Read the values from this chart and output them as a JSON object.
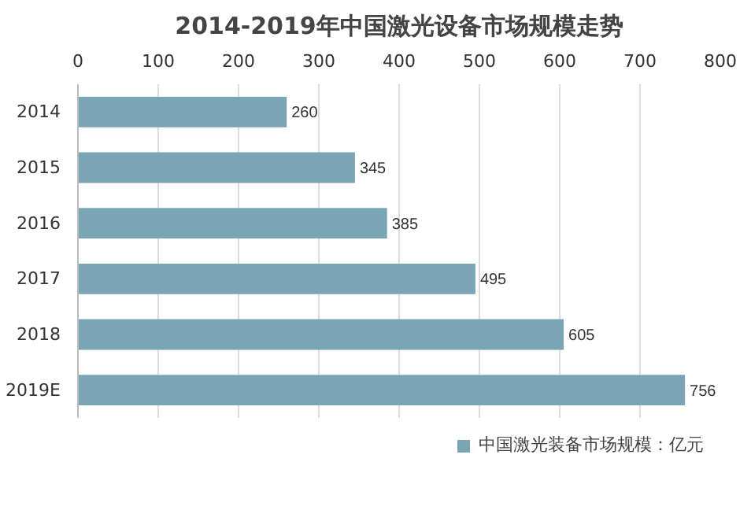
{
  "chart_data": {
    "type": "bar",
    "orientation": "horizontal",
    "title": "2014-2019年中国激光设备市场规模走势",
    "categories": [
      "2014",
      "2015",
      "2016",
      "2017",
      "2018",
      "2019E"
    ],
    "series": [
      {
        "name": "中国激光装备市场规模：亿元",
        "color": "#7aa5b4",
        "values": [
          260,
          345,
          385,
          495,
          605,
          756
        ]
      }
    ],
    "xlim": [
      0,
      800
    ],
    "xticks": [
      0,
      100,
      200,
      300,
      400,
      500,
      600,
      700,
      800
    ],
    "grid": "x",
    "legend": "bottom",
    "data_labels": true
  }
}
